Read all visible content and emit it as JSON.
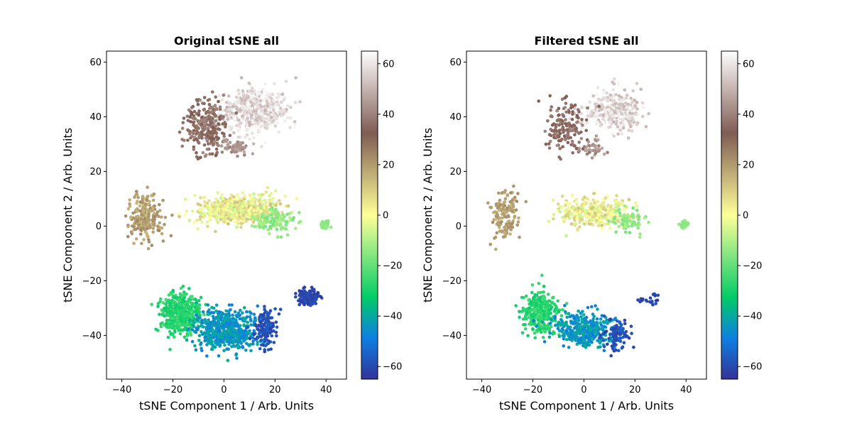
{
  "chart_data": [
    {
      "type": "scatter",
      "title": "Original tSNE all",
      "xlabel": "tSNE Component 1 / Arb. Units",
      "ylabel": "tSNE Component 2 / Arb. Units",
      "xlim": [
        -46,
        48
      ],
      "ylim": [
        -56,
        64
      ],
      "xticks": [
        -40,
        -20,
        0,
        20,
        40
      ],
      "yticks": [
        -40,
        -20,
        0,
        20,
        40,
        60
      ],
      "grid": false,
      "colormap": "terrain",
      "colorbar": {
        "range": [
          -65,
          65
        ],
        "ticks": [
          -60,
          -40,
          -20,
          0,
          20,
          40,
          60
        ]
      },
      "clusters": [
        {
          "name": "top-right",
          "center": [
            12,
            42
          ],
          "spread": [
            11,
            7
          ],
          "count": 520,
          "value_range": [
            50,
            64
          ]
        },
        {
          "name": "top-left",
          "center": [
            -7,
            36
          ],
          "spread": [
            7,
            9
          ],
          "count": 260,
          "value_range": [
            28,
            42
          ]
        },
        {
          "name": "top-tan",
          "center": [
            4,
            29
          ],
          "spread": [
            5,
            3
          ],
          "count": 60,
          "value_range": [
            38,
            48
          ]
        },
        {
          "name": "middle-band",
          "center": [
            6,
            6
          ],
          "spread": [
            15,
            5
          ],
          "count": 520,
          "value_range": [
            -8,
            12
          ]
        },
        {
          "name": "middle-green",
          "center": [
            20,
            2
          ],
          "spread": [
            7,
            4
          ],
          "count": 120,
          "value_range": [
            -18,
            -10
          ]
        },
        {
          "name": "left-tan",
          "center": [
            -31,
            3
          ],
          "spread": [
            6,
            8
          ],
          "count": 230,
          "value_range": [
            14,
            24
          ]
        },
        {
          "name": "right-green-blob",
          "center": [
            39.5,
            0.5
          ],
          "spread": [
            1.5,
            1.2
          ],
          "count": 40,
          "value_range": [
            -16,
            -13
          ]
        },
        {
          "name": "bottom-green",
          "center": [
            -17,
            -32
          ],
          "spread": [
            7,
            7
          ],
          "count": 420,
          "value_range": [
            -32,
            -24
          ]
        },
        {
          "name": "bottom-blue",
          "center": [
            1,
            -38
          ],
          "spread": [
            11,
            7
          ],
          "count": 560,
          "value_range": [
            -50,
            -38
          ]
        },
        {
          "name": "bottom-navy",
          "center": [
            16,
            -37
          ],
          "spread": [
            4,
            6
          ],
          "count": 140,
          "value_range": [
            -62,
            -55
          ]
        },
        {
          "name": "navy-tail",
          "center": [
            33,
            -26
          ],
          "spread": [
            4,
            3
          ],
          "count": 130,
          "value_range": [
            -64,
            -58
          ]
        }
      ]
    },
    {
      "type": "scatter",
      "title": "Filtered tSNE all",
      "xlabel": "tSNE Component 1 / Arb. Units",
      "ylabel": "tSNE Component 2 / Arb. Units",
      "xlim": [
        -46,
        48
      ],
      "ylim": [
        -56,
        64
      ],
      "xticks": [
        -40,
        -20,
        0,
        20,
        40
      ],
      "yticks": [
        -40,
        -20,
        0,
        20,
        40,
        60
      ],
      "grid": false,
      "colormap": "terrain",
      "colorbar": {
        "range": [
          -65,
          65
        ],
        "ticks": [
          -60,
          -40,
          -20,
          0,
          20,
          40,
          60
        ]
      },
      "clusters": [
        {
          "name": "top-right",
          "center": [
            12,
            42
          ],
          "spread": [
            10,
            7
          ],
          "count": 330,
          "value_range": [
            50,
            64
          ]
        },
        {
          "name": "top-left",
          "center": [
            -7,
            36
          ],
          "spread": [
            7,
            9
          ],
          "count": 150,
          "value_range": [
            28,
            42
          ]
        },
        {
          "name": "top-tan",
          "center": [
            4,
            29
          ],
          "spread": [
            5,
            3
          ],
          "count": 40,
          "value_range": [
            38,
            48
          ]
        },
        {
          "name": "middle-band",
          "center": [
            4,
            5
          ],
          "spread": [
            13,
            5
          ],
          "count": 320,
          "value_range": [
            -8,
            12
          ]
        },
        {
          "name": "middle-green",
          "center": [
            17,
            2
          ],
          "spread": [
            6,
            4
          ],
          "count": 70,
          "value_range": [
            -18,
            -10
          ]
        },
        {
          "name": "left-tan",
          "center": [
            -31,
            4
          ],
          "spread": [
            5,
            8
          ],
          "count": 140,
          "value_range": [
            14,
            24
          ]
        },
        {
          "name": "right-green-blob",
          "center": [
            39.5,
            0.5
          ],
          "spread": [
            1.5,
            1.2
          ],
          "count": 30,
          "value_range": [
            -16,
            -13
          ]
        },
        {
          "name": "bottom-green",
          "center": [
            -17,
            -32
          ],
          "spread": [
            7,
            7
          ],
          "count": 300,
          "value_range": [
            -32,
            -24
          ]
        },
        {
          "name": "bottom-blue",
          "center": [
            0,
            -38
          ],
          "spread": [
            10,
            6
          ],
          "count": 360,
          "value_range": [
            -50,
            -38
          ]
        },
        {
          "name": "bottom-navy",
          "center": [
            13,
            -40
          ],
          "spread": [
            5,
            6
          ],
          "count": 90,
          "value_range": [
            -62,
            -55
          ]
        },
        {
          "name": "navy-tail",
          "center": [
            26,
            -27
          ],
          "spread": [
            5,
            2
          ],
          "count": 20,
          "value_range": [
            -64,
            -58
          ]
        }
      ]
    }
  ]
}
